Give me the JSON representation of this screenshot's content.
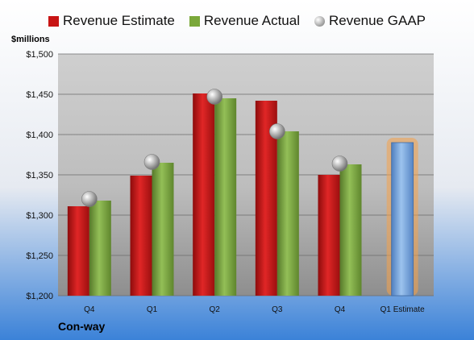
{
  "legend": {
    "estimate": "Revenue Estimate",
    "actual": "Revenue Actual",
    "gaap": "Revenue GAAP"
  },
  "unit_label": "$millions",
  "company": "Con-way",
  "colors": {
    "estimate": "#c81414",
    "actual": "#7aa83a",
    "gaap": "#a0a0a0",
    "forecast": "#6f9fd6",
    "forecast_glow": "#f5a24a"
  },
  "chart_data": {
    "type": "bar",
    "categories": [
      "Q4",
      "Q1",
      "Q2",
      "Q3",
      "Q4",
      "Q1 Estimate"
    ],
    "ylim": [
      1200,
      1500
    ],
    "yticks": [
      1200,
      1250,
      1300,
      1350,
      1400,
      1450,
      1500
    ],
    "ytick_labels": [
      "$1,200",
      "$1,250",
      "$1,300",
      "$1,350",
      "$1,400",
      "$1,450",
      "$1,500"
    ],
    "grid": true,
    "legend_position": "top",
    "series": [
      {
        "name": "Revenue Estimate",
        "values": [
          1311,
          1349,
          1451,
          1442,
          1350,
          null
        ]
      },
      {
        "name": "Revenue Actual",
        "values": [
          1318,
          1365,
          1445,
          1404,
          1363,
          1390
        ]
      },
      {
        "name": "Revenue GAAP",
        "values": [
          1320,
          1366,
          1447,
          1404,
          1364,
          null
        ]
      }
    ]
  }
}
